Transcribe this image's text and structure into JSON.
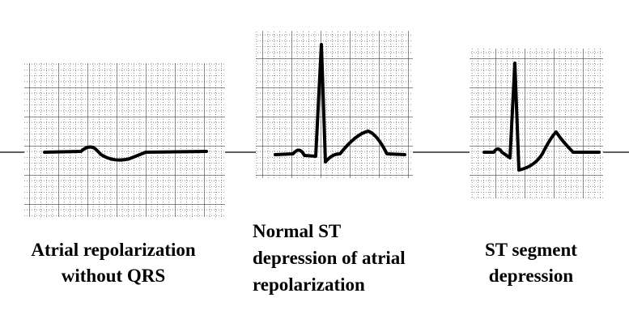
{
  "panels": [
    {
      "label_lines": [
        "Atrial repolarization",
        "without QRS"
      ]
    },
    {
      "label_lines": [
        "Normal ST",
        "depression of atrial",
        "repolarization"
      ]
    },
    {
      "label_lines": [
        "ST segment",
        "depression"
      ]
    }
  ]
}
